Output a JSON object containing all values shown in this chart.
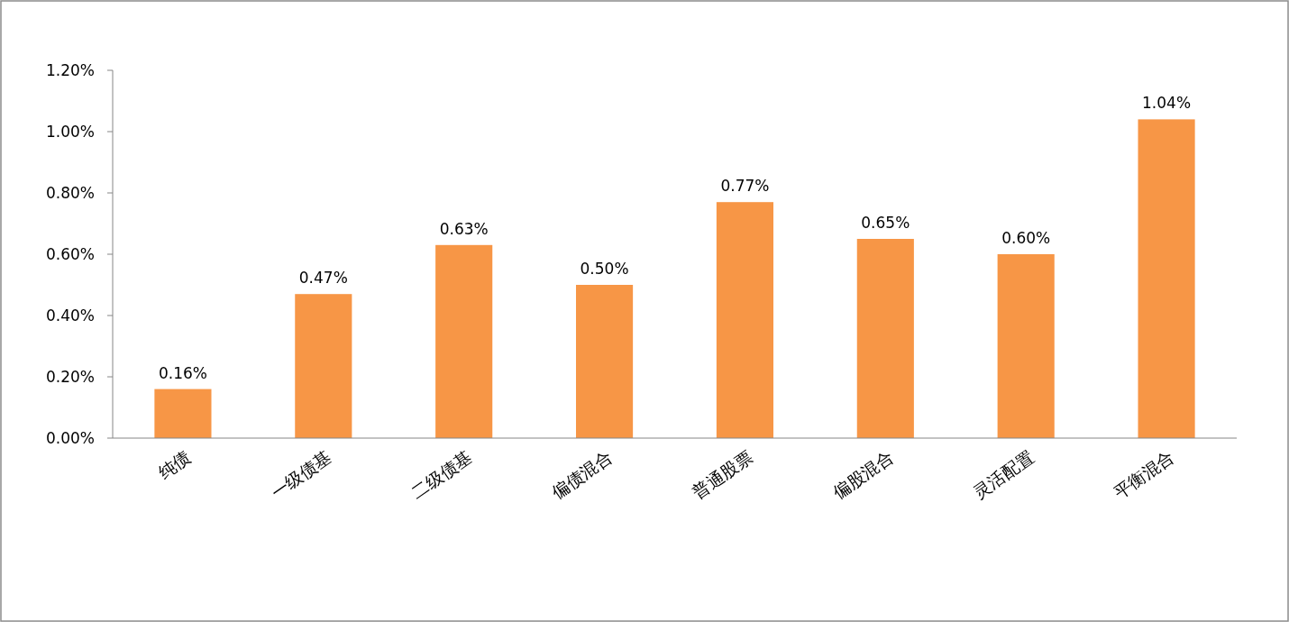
{
  "chart_data": {
    "type": "bar",
    "categories": [
      "纯债",
      "一级债基",
      "二级债基",
      "偏债混合",
      "普通股票",
      "偏股混合",
      "灵活配置",
      "平衡混合"
    ],
    "values": [
      0.16,
      0.47,
      0.63,
      0.5,
      0.77,
      0.65,
      0.6,
      1.04
    ],
    "value_labels": [
      "0.16%",
      "0.47%",
      "0.63%",
      "0.50%",
      "0.77%",
      "0.65%",
      "0.60%",
      "1.04%"
    ],
    "color": "#f79646",
    "ylim": [
      0,
      1.2
    ],
    "yticks": [
      {
        "value": 0,
        "label": "0.00%"
      },
      {
        "value": 0.2,
        "label": "0.20%"
      },
      {
        "value": 0.4,
        "label": "0.40%"
      },
      {
        "value": 0.6,
        "label": "0.60%"
      },
      {
        "value": 0.8,
        "label": "0.80%"
      },
      {
        "value": 1.0,
        "label": "1.00%"
      },
      {
        "value": 1.2,
        "label": "1.20%"
      }
    ],
    "grid": false
  }
}
